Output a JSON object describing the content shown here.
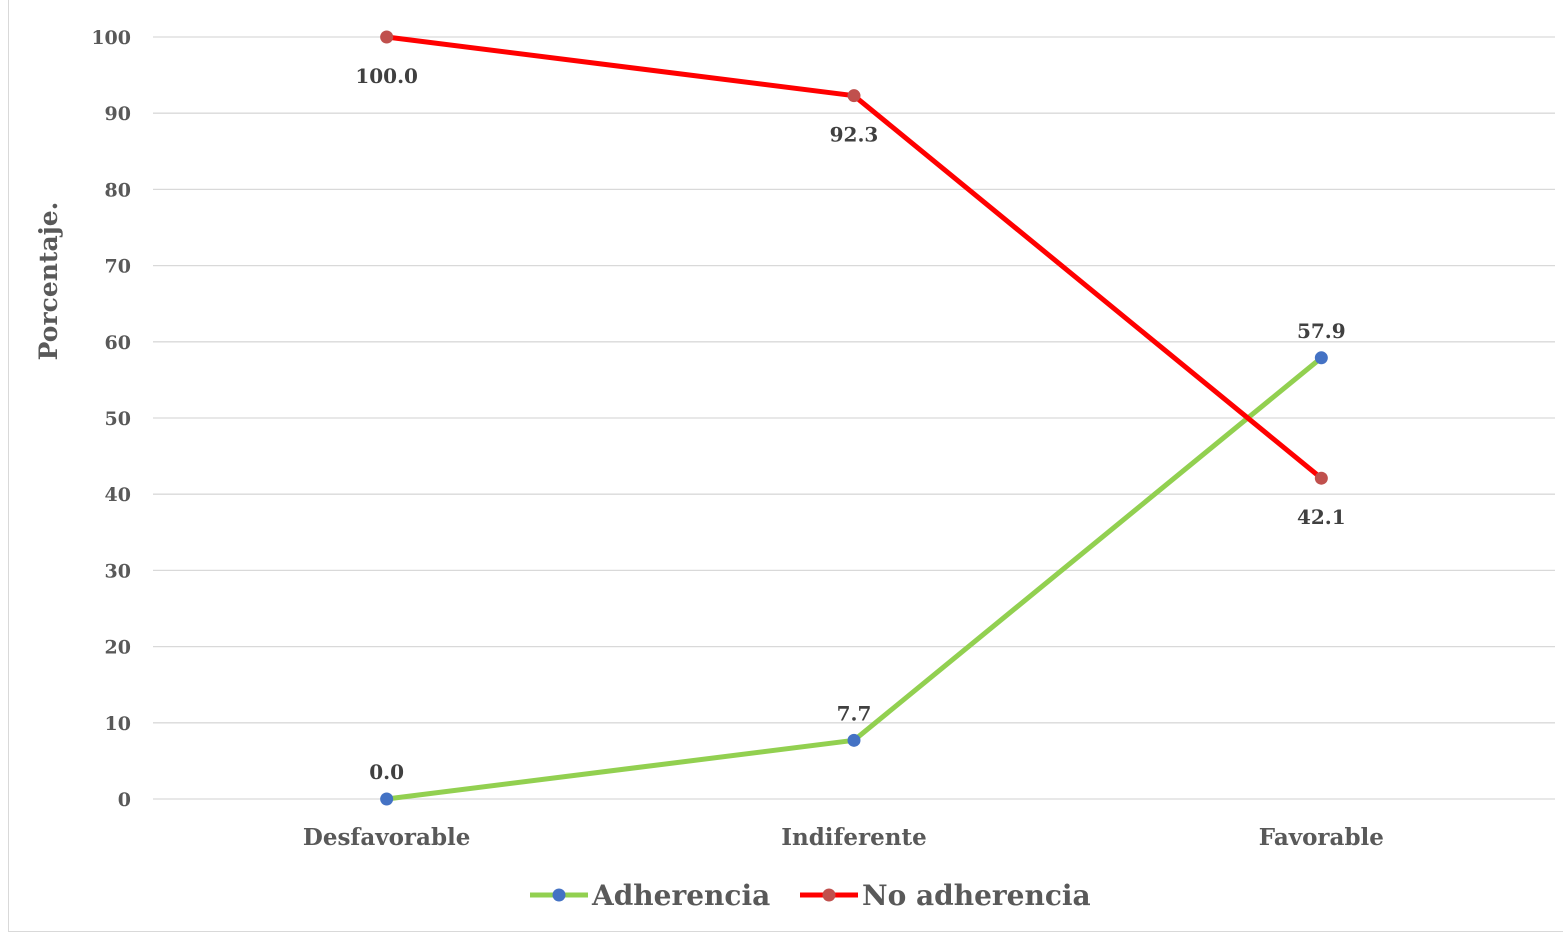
{
  "chart_data": {
    "type": "line",
    "title": "",
    "xlabel": "",
    "ylabel": "Porcentaje.",
    "categories": [
      "Desfavorable",
      "Indiferente",
      "Favorable"
    ],
    "ylim": [
      0,
      100
    ],
    "yticks": [
      0,
      10,
      20,
      30,
      40,
      50,
      60,
      70,
      80,
      90,
      100
    ],
    "grid": true,
    "legend_position": "bottom",
    "series": [
      {
        "name": "Adherencia",
        "values": [
          0.0,
          7.7,
          57.9
        ],
        "labels": [
          "0.0",
          "7.7",
          "57.9"
        ],
        "line_color": "#92d050",
        "marker_color": "#4472c4"
      },
      {
        "name": "No adherencia",
        "values": [
          100.0,
          92.3,
          42.1
        ],
        "labels": [
          "100.0",
          "92.3",
          "42.1"
        ],
        "line_color": "#ff0000",
        "marker_color": "#c0504d"
      }
    ]
  }
}
